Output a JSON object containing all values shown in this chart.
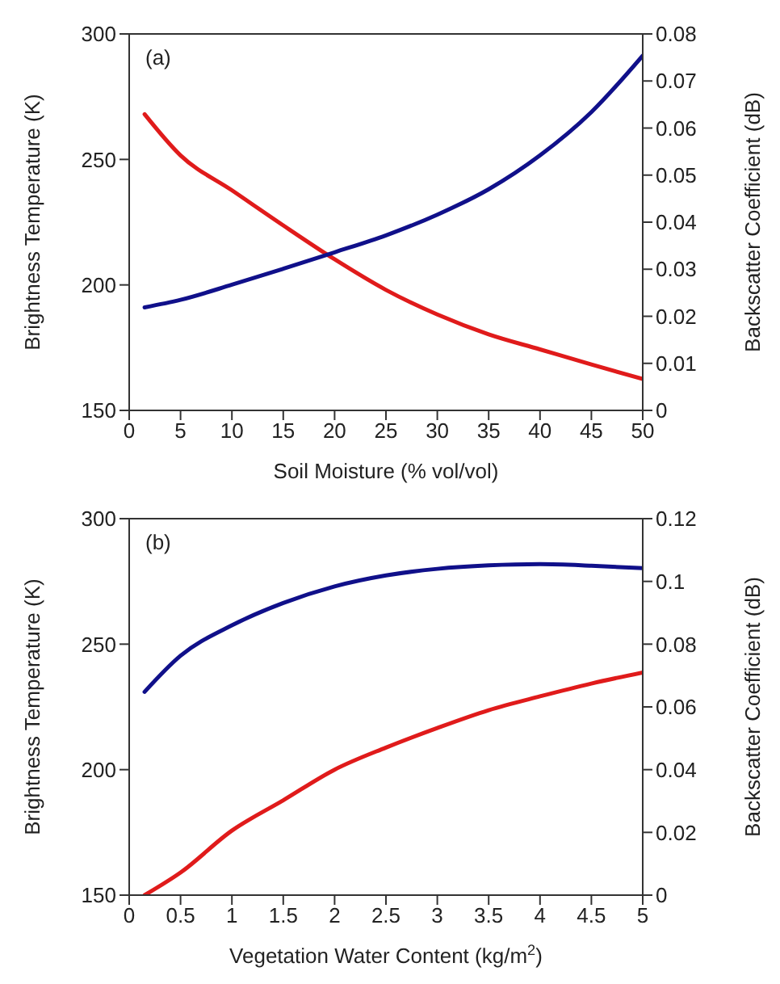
{
  "chart_data": [
    {
      "type": "line",
      "annotations": [
        "(a)"
      ],
      "xlabel": "Soil Moisture (% vol/vol)",
      "ylabel": "Brightness Temperature (K)",
      "y2label": "Backscatter Coefficient (dB)",
      "xlim": [
        0,
        50
      ],
      "xticks": [
        0,
        5,
        10,
        15,
        20,
        25,
        30,
        35,
        40,
        45,
        50
      ],
      "ylim": [
        150,
        300
      ],
      "yticks": [
        150,
        200,
        250,
        300
      ],
      "y2lim": [
        0,
        0.08
      ],
      "y2ticks": [
        0,
        0.01,
        0.02,
        0.03,
        0.04,
        0.05,
        0.06,
        0.07,
        0.08
      ],
      "marker": "none",
      "line_style": "solid",
      "series": [
        {
          "color": "#e01b1b",
          "x": [
            1.5,
            5,
            10,
            15,
            20,
            25,
            30,
            35,
            40,
            45,
            50
          ],
          "values": [
            268,
            251.6,
            237.7,
            223.7,
            210.2,
            198,
            188.2,
            180.3,
            174.3,
            168.3,
            162.5
          ]
        },
        {
          "color": "#10108a",
          "axis": "y2",
          "x": [
            1.5,
            5,
            10,
            15,
            20,
            25,
            30,
            35,
            40,
            45,
            50
          ],
          "values": [
            0.0219,
            0.0235,
            0.0267,
            0.0301,
            0.0336,
            0.0372,
            0.0416,
            0.047,
            0.0542,
            0.0634,
            0.0754
          ]
        }
      ]
    },
    {
      "type": "line",
      "annotations": [
        "(b)"
      ],
      "xlabel": "Vegetation Water Content (kg/m$^{2}$)",
      "ylabel": "Brightness Temperature (K)",
      "y2label": "Backscatter Coefficient (dB)",
      "xlim": [
        0,
        5
      ],
      "xticks": [
        0,
        0.5,
        1,
        1.5,
        2,
        2.5,
        3,
        3.5,
        4,
        4.5,
        5
      ],
      "ylim": [
        150,
        300
      ],
      "yticks": [
        150,
        200,
        250,
        300
      ],
      "y2lim": [
        0,
        0.12
      ],
      "y2ticks": [
        0,
        0.02,
        0.04,
        0.06,
        0.08,
        0.1,
        0.12
      ],
      "marker": "none",
      "line_style": "solid",
      "series": [
        {
          "color": "#e01b1b",
          "x": [
            0.15,
            0.5,
            1,
            1.5,
            2,
            2.5,
            3,
            3.5,
            4,
            4.5,
            5
          ],
          "values": [
            150,
            159,
            175.7,
            187.8,
            200,
            208.8,
            216.6,
            223.7,
            229.2,
            234.3,
            238.7
          ]
        },
        {
          "color": "#10108a",
          "axis": "y2",
          "x": [
            0.15,
            0.5,
            1,
            1.5,
            2,
            2.5,
            3,
            3.5,
            4,
            4.5,
            5
          ],
          "values": [
            0.0648,
            0.0763,
            0.086,
            0.0931,
            0.0984,
            0.1019,
            0.104,
            0.1051,
            0.1055,
            0.105,
            0.1042
          ]
        }
      ]
    }
  ]
}
